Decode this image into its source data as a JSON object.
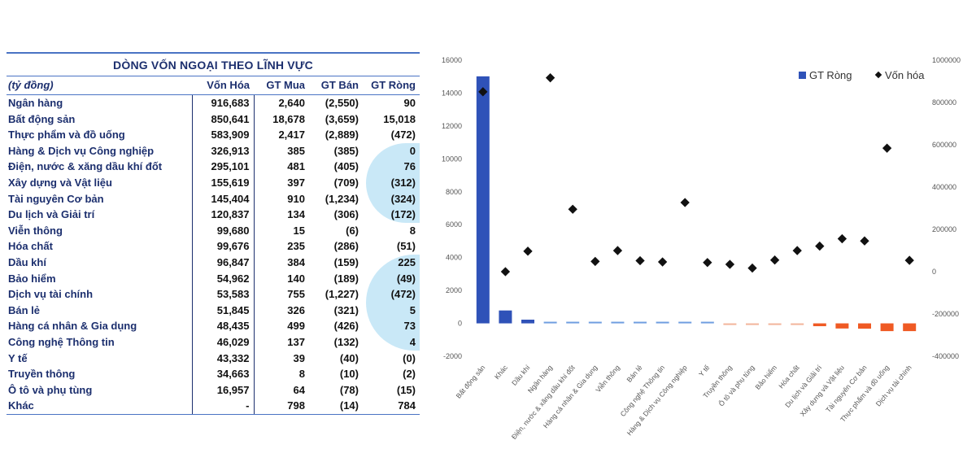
{
  "table": {
    "title": "DÒNG VỐN NGOẠI THEO LĨNH VỰC",
    "headers": [
      "(tỷ đồng)",
      "Vốn Hóa",
      "GT Mua",
      "GT Bán",
      "GT Ròng"
    ],
    "rows": [
      [
        "Ngân hàng",
        "916,683",
        "2,640",
        "(2,550)",
        "90"
      ],
      [
        "Bất động sản",
        "850,641",
        "18,678",
        "(3,659)",
        "15,018"
      ],
      [
        "Thực phẩm và đồ uống",
        "583,909",
        "2,417",
        "(2,889)",
        "(472)"
      ],
      [
        "Hàng & Dịch vụ Công nghiệp",
        "326,913",
        "385",
        "(385)",
        "0"
      ],
      [
        "Điện, nước & xăng dầu khí đốt",
        "295,101",
        "481",
        "(405)",
        "76"
      ],
      [
        "Xây dựng và Vật liệu",
        "155,619",
        "397",
        "(709)",
        "(312)"
      ],
      [
        "Tài nguyên Cơ bản",
        "145,404",
        "910",
        "(1,234)",
        "(324)"
      ],
      [
        "Du lịch và Giải trí",
        "120,837",
        "134",
        "(306)",
        "(172)"
      ],
      [
        "Viễn thông",
        "99,680",
        "15",
        "(6)",
        "8"
      ],
      [
        "Hóa chất",
        "99,676",
        "235",
        "(286)",
        "(51)"
      ],
      [
        "Dầu khí",
        "96,847",
        "384",
        "(159)",
        "225"
      ],
      [
        "Bảo hiểm",
        "54,962",
        "140",
        "(189)",
        "(49)"
      ],
      [
        "Dịch vụ tài chính",
        "53,583",
        "755",
        "(1,227)",
        "(472)"
      ],
      [
        "Bán lẻ",
        "51,845",
        "326",
        "(321)",
        "5"
      ],
      [
        "Hàng cá nhân & Gia dụng",
        "48,435",
        "499",
        "(426)",
        "73"
      ],
      [
        "Công nghệ Thông tin",
        "46,029",
        "137",
        "(132)",
        "4"
      ],
      [
        "Y tế",
        "43,332",
        "39",
        "(40)",
        "(0)"
      ],
      [
        "Truyền thông",
        "34,663",
        "8",
        "(10)",
        "(2)"
      ],
      [
        "Ô tô và phụ tùng",
        "16,957",
        "64",
        "(78)",
        "(15)"
      ],
      [
        "Khác",
        "-",
        "798",
        "(14)",
        "784"
      ]
    ]
  },
  "colors": {
    "table_text": "#1c2f6e",
    "highlight": "#bfe4f6",
    "bar_main": "#2f52b8",
    "bar_light_blue": "#6f9ee0",
    "bar_light_orange": "#f2b49a",
    "bar_orange": "#ef5a24",
    "marker": "#111111"
  },
  "chart_data": {
    "type": "bar",
    "categories": [
      "Bất động sản",
      "Khác",
      "Dầu khí",
      "Ngân hàng",
      "Điện, nước & xăng dầu khí đốt",
      "Hàng cá nhân & Gia dụng",
      "Viễn thông",
      "Bán lẻ",
      "Công nghệ Thông tin",
      "Hàng & Dịch vụ Công nghiệp",
      "Y tế",
      "Truyền thông",
      "Ô tô và phụ tùng",
      "Bảo hiểm",
      "Hóa chất",
      "Du lịch và Giải trí",
      "Xây dựng và Vật liệu",
      "Tài nguyên Cơ bản",
      "Thực phẩm và đồ uống",
      "Dịch vụ tài chính"
    ],
    "series": [
      {
        "name": "GT Ròng",
        "kind": "bar",
        "axis": "left",
        "values": [
          15018,
          784,
          225,
          90,
          76,
          73,
          8,
          5,
          4,
          0,
          0,
          -2,
          -15,
          -49,
          -51,
          -172,
          -312,
          -324,
          -472,
          -472
        ]
      },
      {
        "name": "Vốn hóa",
        "kind": "marker",
        "axis": "right",
        "values": [
          850641,
          0,
          96847,
          916683,
          295101,
          48435,
          99680,
          51845,
          46029,
          326913,
          43332,
          34663,
          16957,
          54962,
          99676,
          120837,
          155619,
          145404,
          583909,
          53583
        ]
      }
    ],
    "ylim_left": [
      -2000,
      16000
    ],
    "yticks_left": [
      "-2000",
      "0",
      "2000",
      "4000",
      "6000",
      "8000",
      "10000",
      "12000",
      "14000",
      "16000"
    ],
    "ylim_right": [
      -400000,
      1000000
    ],
    "yticks_right": [
      "-400000",
      "-200000",
      "0",
      "200000",
      "400000",
      "600000",
      "800000",
      "1000000"
    ],
    "legend_position": "top-right",
    "grid": false
  }
}
